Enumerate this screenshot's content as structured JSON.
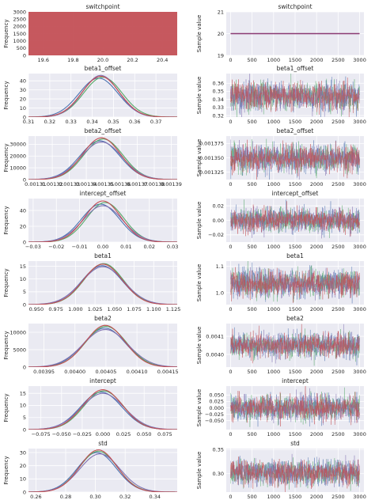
{
  "chart_data": [
    {
      "id": "switchpoint-hist",
      "type": "area",
      "title": "switchpoint",
      "xlabel": "",
      "ylabel": "Frequency",
      "xlim": [
        19.5,
        20.5
      ],
      "ylim": [
        0,
        3000
      ],
      "xticks": [
        19.6,
        19.8,
        20.0,
        20.2,
        20.4
      ],
      "xticklabels": [
        "19.6",
        "19.8",
        "20.0",
        "20.2",
        "20.4"
      ],
      "yticks": [
        0,
        500,
        1000,
        1500,
        2000,
        2500,
        3000
      ],
      "yticklabels": [
        "0",
        "500",
        "1000",
        "1500",
        "2000",
        "2500",
        "3000"
      ],
      "series": [
        {
          "values": [
            [
              19.5,
              3000
            ],
            [
              20.5,
              3000
            ]
          ]
        }
      ]
    },
    {
      "id": "switchpoint-trace",
      "type": "line",
      "title": "switchpoint",
      "xlabel": "",
      "ylabel": "Sample value",
      "xlim": [
        -100,
        3100
      ],
      "ylim": [
        19,
        21
      ],
      "xticks": [
        0,
        500,
        1000,
        1500,
        2000,
        2500,
        3000
      ],
      "xticklabels": [
        "0",
        "500",
        "1000",
        "1500",
        "2000",
        "2500",
        "3000"
      ],
      "yticks": [
        19,
        20,
        21
      ],
      "yticklabels": [
        "19",
        "20",
        "21"
      ],
      "series": [
        {
          "values": [
            [
              0,
              20
            ],
            [
              3000,
              20
            ]
          ]
        }
      ]
    },
    {
      "id": "beta1-offset-hist",
      "type": "line",
      "title": "beta1_offset",
      "xlabel": "",
      "ylabel": "Frequency",
      "xlim": [
        0.31,
        0.38
      ],
      "ylim": [
        0,
        48
      ],
      "xticks": [
        0.31,
        0.32,
        0.33,
        0.34,
        0.35,
        0.36,
        0.37
      ],
      "xticklabels": [
        "0.31",
        "0.32",
        "0.33",
        "0.34",
        "0.35",
        "0.36",
        "0.37"
      ],
      "yticks": [
        0,
        10,
        20,
        30,
        40
      ],
      "yticklabels": [
        "0",
        "10",
        "20",
        "30",
        "40"
      ],
      "series": [
        {
          "mean": 0.344,
          "sd": 0.0088,
          "peak": 45
        },
        {
          "mean": 0.343,
          "sd": 0.0092,
          "peak": 43
        },
        {
          "mean": 0.345,
          "sd": 0.009,
          "peak": 44
        },
        {
          "mean": 0.344,
          "sd": 0.0085,
          "peak": 46
        }
      ]
    },
    {
      "id": "beta1-offset-trace",
      "type": "line",
      "title": "beta1_offset",
      "xlabel": "",
      "ylabel": "Sample value",
      "xlim": [
        -100,
        3100
      ],
      "ylim": [
        0.318,
        0.372
      ],
      "xticks": [
        0,
        500,
        1000,
        1500,
        2000,
        2500,
        3000
      ],
      "xticklabels": [
        "0",
        "500",
        "1000",
        "1500",
        "2000",
        "2500",
        "3000"
      ],
      "yticks": [
        0.32,
        0.33,
        0.34,
        0.35,
        0.36
      ],
      "yticklabels": [
        "0.32",
        "0.33",
        "0.34",
        "0.35",
        "0.36"
      ],
      "trace": {
        "mean": 0.344,
        "sd": 0.0088
      }
    },
    {
      "id": "beta2-offset-hist",
      "type": "line",
      "title": "beta2_offset",
      "xlabel": "",
      "ylabel": "Frequency",
      "xlim": [
        0.001306,
        0.0013935
      ],
      "ylim": [
        0,
        37000
      ],
      "xticks": [
        0.00131,
        0.00132,
        0.00133,
        0.00134,
        0.00135,
        0.00136,
        0.00137,
        0.00138,
        0.00139
      ],
      "xticklabels": [
        "0.00131",
        "0.00132",
        "0.00133",
        "0.00134",
        "0.00135",
        "0.00136",
        "0.00137",
        "0.00138",
        "0.00139"
      ],
      "yticks": [
        0,
        10000,
        20000,
        30000
      ],
      "yticklabels": [
        "0",
        "10000",
        "20000",
        "30000"
      ],
      "series": [
        {
          "mean": 0.001349,
          "sd": 1.12e-05,
          "peak": 35500
        },
        {
          "mean": 0.001348,
          "sd": 1.18e-05,
          "peak": 33000
        },
        {
          "mean": 0.00135,
          "sd": 1.15e-05,
          "peak": 34500
        },
        {
          "mean": 0.001349,
          "sd": 1.2e-05,
          "peak": 32000
        }
      ]
    },
    {
      "id": "beta2-offset-trace",
      "type": "line",
      "title": "beta2_offset",
      "xlabel": "",
      "ylabel": "Sample value",
      "xlim": [
        -100,
        3100
      ],
      "ylim": [
        0.001312,
        0.001388
      ],
      "xticks": [
        0,
        500,
        1000,
        1500,
        2000,
        2500,
        3000
      ],
      "xticklabels": [
        "0",
        "500",
        "1000",
        "1500",
        "2000",
        "2500",
        "3000"
      ],
      "yticks": [
        0.001325,
        0.00135,
        0.001375
      ],
      "yticklabels": [
        "0.001325",
        "0.001350",
        "0.001375"
      ],
      "trace": {
        "mean": 0.001349,
        "sd": 1.15e-05
      }
    },
    {
      "id": "intercept-offset-hist",
      "type": "line",
      "title": "intercept_offset",
      "xlabel": "",
      "ylabel": "Frequency",
      "xlim": [
        -0.032,
        0.032
      ],
      "ylim": [
        0,
        55
      ],
      "xticks": [
        -0.03,
        -0.02,
        -0.01,
        0.0,
        0.01,
        0.02,
        0.03
      ],
      "xticklabels": [
        "−0.03",
        "−0.02",
        "−0.01",
        "0.00",
        "0.01",
        "0.02",
        "0.03"
      ],
      "yticks": [
        0,
        20,
        40
      ],
      "yticklabels": [
        "0",
        "20",
        "40"
      ],
      "series": [
        {
          "mean": 0.0,
          "sd": 0.0078,
          "peak": 52
        },
        {
          "mean": -0.001,
          "sd": 0.0082,
          "peak": 48
        },
        {
          "mean": 0.001,
          "sd": 0.008,
          "peak": 50
        },
        {
          "mean": 0.0,
          "sd": 0.0085,
          "peak": 46
        }
      ]
    },
    {
      "id": "intercept-offset-trace",
      "type": "line",
      "title": "intercept_offset",
      "xlabel": "",
      "ylabel": "Sample value",
      "xlim": [
        -100,
        3100
      ],
      "ylim": [
        -0.03,
        0.03
      ],
      "xticks": [
        0,
        500,
        1000,
        1500,
        2000,
        2500,
        3000
      ],
      "xticklabels": [
        "0",
        "500",
        "1000",
        "1500",
        "2000",
        "2500",
        "3000"
      ],
      "yticks": [
        -0.02,
        0.0,
        0.02
      ],
      "yticklabels": [
        "−0.02",
        "0.00",
        "0.02"
      ],
      "trace": {
        "mean": 0.0,
        "sd": 0.008
      }
    },
    {
      "id": "beta1-hist",
      "type": "line",
      "title": "beta1",
      "xlabel": "",
      "ylabel": "Frequency",
      "xlim": [
        0.94,
        1.13
      ],
      "ylim": [
        0,
        17
      ],
      "xticks": [
        0.95,
        0.975,
        1.0,
        1.025,
        1.05,
        1.075,
        1.1,
        1.125
      ],
      "xticklabels": [
        "0.950",
        "0.975",
        "1.000",
        "1.025",
        "1.050",
        "1.075",
        "1.100",
        "1.125"
      ],
      "yticks": [
        0,
        5,
        10,
        15
      ],
      "yticklabels": [
        "0",
        "5",
        "10",
        "15"
      ],
      "series": [
        {
          "mean": 1.035,
          "sd": 0.025,
          "peak": 15.8
        },
        {
          "mean": 1.034,
          "sd": 0.026,
          "peak": 15.2
        },
        {
          "mean": 1.036,
          "sd": 0.025,
          "peak": 16
        },
        {
          "mean": 1.035,
          "sd": 0.027,
          "peak": 14.8
        }
      ]
    },
    {
      "id": "beta1-trace",
      "type": "line",
      "title": "beta1",
      "xlabel": "",
      "ylabel": "Sample value",
      "xlim": [
        -100,
        3100
      ],
      "ylim": [
        0.955,
        1.12
      ],
      "xticks": [
        0,
        500,
        1000,
        1500,
        2000,
        2500,
        3000
      ],
      "xticklabels": [
        "0",
        "500",
        "1000",
        "1500",
        "2000",
        "2500",
        "3000"
      ],
      "yticks": [
        1.0,
        1.1
      ],
      "yticklabels": [
        "1.0",
        "1.1"
      ],
      "trace": {
        "mean": 1.035,
        "sd": 0.025
      }
    },
    {
      "id": "beta2-hist",
      "type": "line",
      "title": "beta2",
      "xlabel": "",
      "ylabel": "Frequency",
      "xlim": [
        0.003925,
        0.004165
      ],
      "ylim": [
        0,
        12500
      ],
      "xticks": [
        0.00395,
        0.004,
        0.00405,
        0.0041,
        0.00415
      ],
      "xticklabels": [
        "0.00395",
        "0.00400",
        "0.00405",
        "0.00410",
        "0.00415"
      ],
      "yticks": [
        0,
        5000,
        10000
      ],
      "yticklabels": [
        "0",
        "5000",
        "10000"
      ],
      "series": [
        {
          "mean": 0.004049,
          "sd": 3.2e-05,
          "peak": 12000
        },
        {
          "mean": 0.004048,
          "sd": 3.4e-05,
          "peak": 11200
        },
        {
          "mean": 0.00405,
          "sd": 3.3e-05,
          "peak": 11700
        },
        {
          "mean": 0.004049,
          "sd": 3.6e-05,
          "peak": 10800
        }
      ]
    },
    {
      "id": "beta2-trace",
      "type": "line",
      "title": "beta2",
      "xlabel": "",
      "ylabel": "Sample value",
      "xlim": [
        -100,
        3100
      ],
      "ylim": [
        0.00393,
        0.00417
      ],
      "xticks": [
        0,
        500,
        1000,
        1500,
        2000,
        2500,
        3000
      ],
      "xticklabels": [
        "0",
        "500",
        "1000",
        "1500",
        "2000",
        "2500",
        "3000"
      ],
      "yticks": [
        0.004,
        0.0041
      ],
      "yticklabels": [
        "0.0040",
        "0.0041"
      ],
      "trace": {
        "mean": 0.004049,
        "sd": 3.3e-05
      }
    },
    {
      "id": "intercept-hist",
      "type": "line",
      "title": "intercept",
      "xlabel": "",
      "ylabel": "Frequency",
      "xlim": [
        -0.09,
        0.09
      ],
      "ylim": [
        0,
        18
      ],
      "xticks": [
        -0.075,
        -0.05,
        -0.025,
        0.0,
        0.025,
        0.05,
        0.075
      ],
      "xticklabels": [
        "−0.075",
        "−0.050",
        "−0.025",
        "0.000",
        "0.025",
        "0.050",
        "0.075"
      ],
      "yticks": [
        0,
        5,
        10,
        15
      ],
      "yticklabels": [
        "0",
        "5",
        "10",
        "15"
      ],
      "series": [
        {
          "mean": 0.0,
          "sd": 0.024,
          "peak": 16.5
        },
        {
          "mean": -0.002,
          "sd": 0.025,
          "peak": 15.5
        },
        {
          "mean": 0.001,
          "sd": 0.024,
          "peak": 16
        },
        {
          "mean": 0.0,
          "sd": 0.026,
          "peak": 15
        }
      ]
    },
    {
      "id": "intercept-trace",
      "type": "line",
      "title": "intercept",
      "xlabel": "",
      "ylabel": "Sample value",
      "xlim": [
        -100,
        3100
      ],
      "ylim": [
        -0.085,
        0.085
      ],
      "xticks": [
        0,
        500,
        1000,
        1500,
        2000,
        2500,
        3000
      ],
      "xticklabels": [
        "0",
        "500",
        "1000",
        "1500",
        "2000",
        "2500",
        "3000"
      ],
      "yticks": [
        -0.05,
        -0.025,
        0.0,
        0.025,
        0.05
      ],
      "yticklabels": [
        "−0.050",
        "−0.025",
        "0.000",
        "0.025",
        "0.050"
      ],
      "trace": {
        "mean": 0.0,
        "sd": 0.024
      }
    },
    {
      "id": "std-hist",
      "type": "line",
      "title": "std",
      "xlabel": "",
      "ylabel": "Frequency",
      "xlim": [
        0.255,
        0.355
      ],
      "ylim": [
        0,
        33
      ],
      "xticks": [
        0.26,
        0.28,
        0.3,
        0.32,
        0.34
      ],
      "xticklabels": [
        "0.26",
        "0.28",
        "0.30",
        "0.32",
        "0.34"
      ],
      "yticks": [
        0,
        10,
        20,
        30
      ],
      "yticklabels": [
        "0",
        "10",
        "20",
        "30"
      ],
      "series": [
        {
          "mean": 0.302,
          "sd": 0.0125,
          "peak": 32
        },
        {
          "mean": 0.301,
          "sd": 0.013,
          "peak": 30
        },
        {
          "mean": 0.302,
          "sd": 0.0128,
          "peak": 31
        },
        {
          "mean": 0.303,
          "sd": 0.0135,
          "peak": 29
        }
      ]
    },
    {
      "id": "std-trace",
      "type": "line",
      "title": "std",
      "xlabel": "",
      "ylabel": "Sample value",
      "xlim": [
        -100,
        3100
      ],
      "ylim": [
        0.262,
        0.352
      ],
      "xticks": [
        0,
        500,
        1000,
        1500,
        2000,
        2500,
        3000
      ],
      "xticklabels": [
        "0",
        "500",
        "1000",
        "1500",
        "2000",
        "2500",
        "3000"
      ],
      "yticks": [
        0.3,
        0.35
      ],
      "yticklabels": [
        "0.30",
        "0.35"
      ],
      "trace": {
        "mean": 0.302,
        "sd": 0.0128
      }
    }
  ],
  "colors": {
    "panel_bg": "#eaeaf2",
    "grid": "#ffffff",
    "text": "#262626",
    "series": [
      "#c44e52",
      "#4c72b0",
      "#55a868",
      "#8172b2"
    ],
    "red": "#c44e52"
  }
}
